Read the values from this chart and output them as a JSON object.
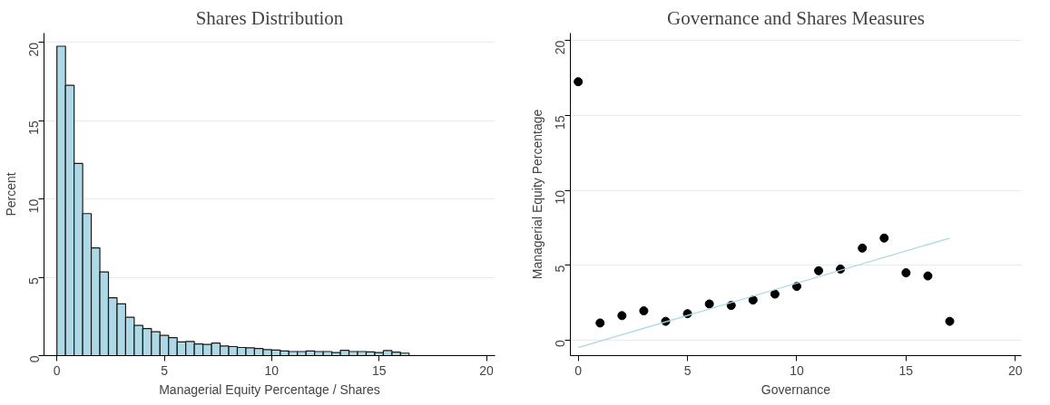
{
  "chart_data": [
    {
      "type": "histogram",
      "title": "Shares Distribution",
      "xlabel": "Managerial Equity Percentage / Shares",
      "ylabel": "Percent",
      "bins": [
        0,
        0.4,
        0.8,
        1.2,
        1.6,
        2.0,
        2.4,
        2.8,
        3.2,
        3.6,
        4.0,
        4.4,
        4.8,
        5.2,
        5.6,
        6.0,
        6.4,
        6.8,
        7.2,
        7.6,
        8.0,
        8.4,
        8.8,
        9.2,
        9.6,
        10.0,
        10.4,
        10.8,
        11.2,
        11.6,
        12.0,
        12.4,
        12.8,
        13.2,
        13.6,
        14.0,
        14.4,
        14.8,
        15.2,
        15.6,
        16.0,
        16.4
      ],
      "values": [
        19.76,
        17.26,
        12.27,
        9.07,
        6.88,
        5.35,
        3.7,
        3.3,
        2.45,
        1.93,
        1.73,
        1.53,
        1.29,
        1.15,
        0.87,
        0.9,
        0.74,
        0.72,
        0.8,
        0.62,
        0.58,
        0.52,
        0.5,
        0.46,
        0.38,
        0.36,
        0.3,
        0.26,
        0.26,
        0.3,
        0.26,
        0.26,
        0.2,
        0.34,
        0.26,
        0.26,
        0.24,
        0.2,
        0.32,
        0.22,
        0.16
      ],
      "color": "#add8e6",
      "xlim": [
        -0.6,
        20.4
      ],
      "ylim": [
        0,
        20.6
      ],
      "xticks": [
        0,
        5,
        10,
        15,
        20
      ],
      "yticks": [
        0,
        5,
        10,
        15,
        20
      ],
      "grid": "y"
    },
    {
      "type": "scatter",
      "title": "Governance and Shares Measures",
      "xlabel": "Governance",
      "ylabel": "Managerial Equity Percentage",
      "series": [
        {
          "type": "scatter",
          "color": "#000000",
          "marker": "circle",
          "x": [
            0,
            1,
            2,
            3,
            4,
            5,
            6,
            7,
            8,
            9,
            10,
            11,
            12,
            13,
            14,
            15,
            16,
            17
          ],
          "values": [
            17.25,
            1.14,
            1.63,
            1.95,
            1.25,
            1.76,
            2.41,
            2.31,
            2.67,
            3.07,
            3.58,
            4.63,
            4.74,
            6.14,
            6.81,
            4.49,
            4.28,
            1.25
          ]
        },
        {
          "type": "line",
          "color": "#add8e6",
          "x": [
            0,
            17
          ],
          "values": [
            -0.51,
            6.81
          ]
        }
      ],
      "xlim": [
        -0.36,
        20.28
      ],
      "ylim": [
        -1.04,
        20.5
      ],
      "xticks": [
        0,
        5,
        10,
        15,
        20
      ],
      "yticks": [
        0,
        5,
        10,
        15,
        20
      ],
      "grid": "y"
    }
  ]
}
